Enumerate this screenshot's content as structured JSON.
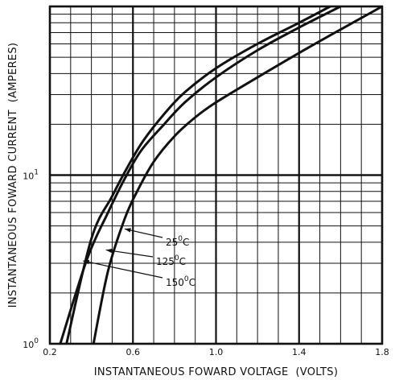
{
  "chart_data": {
    "type": "line",
    "xlabel": "INSTANTANEOUS FOWARD VOLTAGE  (VOLTS)",
    "ylabel": "INSTANTANEOUS FOWARD CURRENT  (AMPERES)",
    "xlim": [
      0.2,
      1.8
    ],
    "ylim": [
      1,
      100
    ],
    "yscale": "log",
    "grid": true,
    "x_ticks": [
      {
        "value": 0.2,
        "label": "0.2"
      },
      {
        "value": 0.6,
        "label": "0.6"
      },
      {
        "value": 1.0,
        "label": "1.0"
      },
      {
        "value": 1.4,
        "label": "1.4"
      },
      {
        "value": 1.8,
        "label": "1.8"
      }
    ],
    "y_ticks": [
      {
        "value": 1,
        "base": "10",
        "exp": "0"
      },
      {
        "value": 10,
        "base": "10",
        "exp": "1"
      }
    ],
    "series": [
      {
        "name": "25°C",
        "label_base": "25",
        "label_sup": "0",
        "label_unit": "C",
        "x": [
          0.28,
          0.4,
          0.5,
          0.58,
          0.65,
          0.75,
          0.85,
          1.0,
          1.2,
          1.4,
          1.55
        ],
        "y": [
          1.0,
          4.2,
          7.5,
          11.5,
          16.0,
          23.0,
          31.0,
          43.0,
          60.0,
          80.0,
          100.0
        ]
      },
      {
        "name": "125°C",
        "label_base": "125",
        "label_sup": "0",
        "label_unit": "C",
        "x": [
          0.25,
          0.38,
          0.48,
          0.56,
          0.64,
          0.75,
          0.85,
          1.0,
          1.2,
          1.4,
          1.6
        ],
        "y": [
          1.0,
          3.2,
          6.0,
          9.5,
          14.0,
          20.0,
          27.0,
          38.0,
          55.0,
          75.0,
          100.0
        ]
      },
      {
        "name": "150°C",
        "label_base": "150",
        "label_sup": "0",
        "label_unit": "C",
        "x": [
          0.41,
          0.48,
          0.56,
          0.62,
          0.7,
          0.8,
          0.9,
          1.0,
          1.2,
          1.4,
          1.6,
          1.8
        ],
        "y": [
          1.0,
          2.7,
          5.5,
          8.0,
          12.0,
          17.0,
          22.0,
          27.0,
          38.0,
          53.0,
          73.0,
          100.0
        ]
      }
    ]
  }
}
